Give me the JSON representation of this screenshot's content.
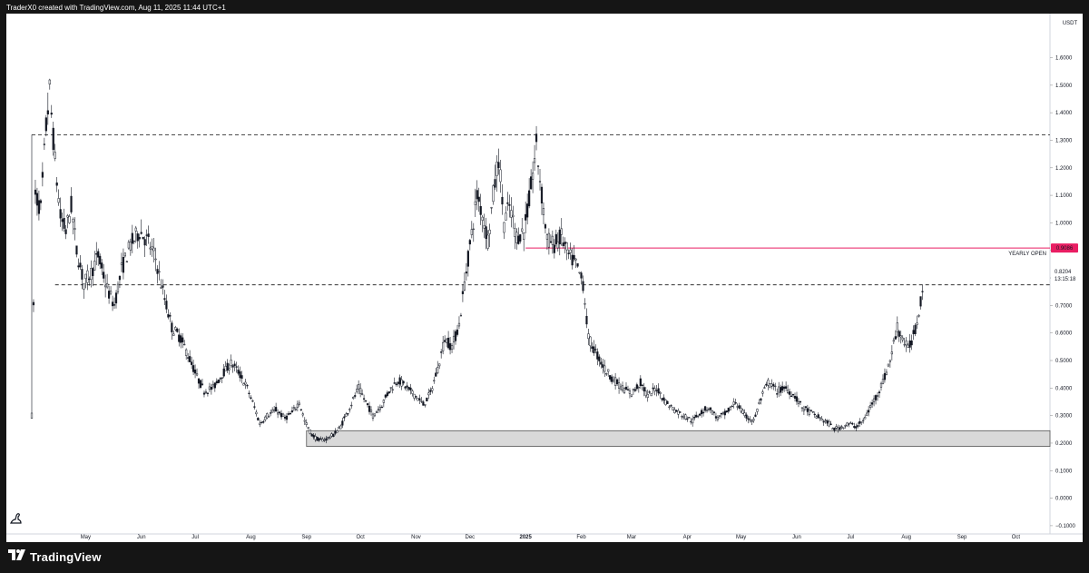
{
  "header": {
    "caption": "TraderX0 created with TradingView.com, Aug 11, 2025 11:44 UTC+1"
  },
  "footer": {
    "brand": "TradingView"
  },
  "icons": {
    "footer_logo": "tradingview-logo-icon",
    "corner": "tradingview-mascot-icon"
  },
  "colors": {
    "background": "#ffffff",
    "frame": "#151515",
    "candle": "#131722",
    "yearly_open": "#e91e63",
    "range_box": "#d9d9d9"
  },
  "chart_data": {
    "type": "candlestick",
    "currency": "USDT",
    "ylim": [
      -0.13,
      1.76
    ],
    "y_ticks": [
      1.6,
      1.5,
      1.4,
      1.3,
      1.2,
      1.1,
      1.0,
      0.9,
      0.8,
      0.7,
      0.6,
      0.5,
      0.4,
      0.3,
      0.2,
      0.1,
      0.0,
      -0.1
    ],
    "y_tick_labels": [
      "1.6000",
      "1.5000",
      "1.4000",
      "1.3000",
      "1.2000",
      "1.1000",
      "1.0000",
      "0.9000",
      "0.8000",
      "0.7000",
      "0.6000",
      "0.5000",
      "0.4000",
      "0.3000",
      "0.2000",
      "0.1000",
      "0.0000",
      "−0.1000"
    ],
    "x_ticks": [
      {
        "date": "2024-05-01",
        "label": "May"
      },
      {
        "date": "2024-06-01",
        "label": "Jun"
      },
      {
        "date": "2024-07-01",
        "label": "Jul"
      },
      {
        "date": "2024-08-01",
        "label": "Aug"
      },
      {
        "date": "2024-09-01",
        "label": "Sep"
      },
      {
        "date": "2024-10-01",
        "label": "Oct"
      },
      {
        "date": "2024-11-01",
        "label": "Nov"
      },
      {
        "date": "2024-12-01",
        "label": "Dec"
      },
      {
        "date": "2025-01-01",
        "label": "2025"
      },
      {
        "date": "2025-02-01",
        "label": "Feb"
      },
      {
        "date": "2025-03-01",
        "label": "Mar"
      },
      {
        "date": "2025-04-01",
        "label": "Apr"
      },
      {
        "date": "2025-05-01",
        "label": "May"
      },
      {
        "date": "2025-06-01",
        "label": "Jun"
      },
      {
        "date": "2025-07-01",
        "label": "Jul"
      },
      {
        "date": "2025-08-01",
        "label": "Aug"
      },
      {
        "date": "2025-09-01",
        "label": "Sep"
      },
      {
        "date": "2025-10-01",
        "label": "Oct"
      }
    ],
    "x_range": [
      "2024-04-01",
      "2025-10-20"
    ],
    "series_path": [
      [
        "2024-04-01",
        0.3
      ],
      [
        "2024-04-03",
        1.1
      ],
      [
        "2024-04-06",
        1.05
      ],
      [
        "2024-04-09",
        1.35
      ],
      [
        "2024-04-11",
        1.48
      ],
      [
        "2024-04-14",
        1.22
      ],
      [
        "2024-04-17",
        1.02
      ],
      [
        "2024-04-20",
        0.97
      ],
      [
        "2024-04-23",
        1.06
      ],
      [
        "2024-04-26",
        0.9
      ],
      [
        "2024-04-30",
        0.78
      ],
      [
        "2024-05-04",
        0.82
      ],
      [
        "2024-05-08",
        0.88
      ],
      [
        "2024-05-13",
        0.76
      ],
      [
        "2024-05-17",
        0.7
      ],
      [
        "2024-05-21",
        0.83
      ],
      [
        "2024-05-26",
        0.92
      ],
      [
        "2024-05-31",
        0.97
      ],
      [
        "2024-06-05",
        0.93
      ],
      [
        "2024-06-09",
        0.87
      ],
      [
        "2024-06-13",
        0.75
      ],
      [
        "2024-06-18",
        0.62
      ],
      [
        "2024-06-23",
        0.58
      ],
      [
        "2024-06-27",
        0.52
      ],
      [
        "2024-07-02",
        0.44
      ],
      [
        "2024-07-06",
        0.39
      ],
      [
        "2024-07-11",
        0.4
      ],
      [
        "2024-07-16",
        0.45
      ],
      [
        "2024-07-21",
        0.49
      ],
      [
        "2024-07-25",
        0.46
      ],
      [
        "2024-07-30",
        0.4
      ],
      [
        "2024-08-03",
        0.33
      ],
      [
        "2024-08-06",
        0.27
      ],
      [
        "2024-08-10",
        0.3
      ],
      [
        "2024-08-15",
        0.32
      ],
      [
        "2024-08-20",
        0.29
      ],
      [
        "2024-08-24",
        0.31
      ],
      [
        "2024-08-28",
        0.35
      ],
      [
        "2024-08-31",
        0.28
      ],
      [
        "2024-09-04",
        0.23
      ],
      [
        "2024-09-08",
        0.21
      ],
      [
        "2024-09-12",
        0.215
      ],
      [
        "2024-09-16",
        0.23
      ],
      [
        "2024-09-20",
        0.26
      ],
      [
        "2024-09-25",
        0.33
      ],
      [
        "2024-09-30",
        0.4
      ],
      [
        "2024-10-04",
        0.35
      ],
      [
        "2024-10-08",
        0.3
      ],
      [
        "2024-10-13",
        0.34
      ],
      [
        "2024-10-17",
        0.39
      ],
      [
        "2024-10-22",
        0.43
      ],
      [
        "2024-10-27",
        0.4
      ],
      [
        "2024-11-01",
        0.37
      ],
      [
        "2024-11-05",
        0.34
      ],
      [
        "2024-11-09",
        0.38
      ],
      [
        "2024-11-13",
        0.47
      ],
      [
        "2024-11-17",
        0.58
      ],
      [
        "2024-11-21",
        0.55
      ],
      [
        "2024-11-25",
        0.63
      ],
      [
        "2024-11-28",
        0.78
      ],
      [
        "2024-12-02",
        0.96
      ],
      [
        "2024-12-05",
        1.1
      ],
      [
        "2024-12-08",
        1.03
      ],
      [
        "2024-12-11",
        0.94
      ],
      [
        "2024-12-14",
        1.1
      ],
      [
        "2024-12-17",
        1.24
      ],
      [
        "2024-12-20",
        1.0
      ],
      [
        "2024-12-23",
        1.06
      ],
      [
        "2024-12-27",
        0.95
      ],
      [
        "2024-12-31",
        0.97
      ],
      [
        "2025-01-03",
        1.08
      ],
      [
        "2025-01-07",
        1.28
      ],
      [
        "2025-01-10",
        1.1
      ],
      [
        "2025-01-13",
        0.94
      ],
      [
        "2025-01-17",
        0.92
      ],
      [
        "2025-01-21",
        0.95
      ],
      [
        "2025-01-25",
        0.88
      ],
      [
        "2025-01-29",
        0.85
      ],
      [
        "2025-02-02",
        0.78
      ],
      [
        "2025-02-05",
        0.58
      ],
      [
        "2025-02-09",
        0.53
      ],
      [
        "2025-02-14",
        0.47
      ],
      [
        "2025-02-19",
        0.43
      ],
      [
        "2025-02-24",
        0.4
      ],
      [
        "2025-03-01",
        0.38
      ],
      [
        "2025-03-06",
        0.42
      ],
      [
        "2025-03-10",
        0.37
      ],
      [
        "2025-03-15",
        0.4
      ],
      [
        "2025-03-20",
        0.35
      ],
      [
        "2025-03-25",
        0.32
      ],
      [
        "2025-03-30",
        0.3
      ],
      [
        "2025-04-04",
        0.28
      ],
      [
        "2025-04-08",
        0.31
      ],
      [
        "2025-04-13",
        0.33
      ],
      [
        "2025-04-18",
        0.29
      ],
      [
        "2025-04-23",
        0.31
      ],
      [
        "2025-04-28",
        0.35
      ],
      [
        "2025-05-03",
        0.3
      ],
      [
        "2025-05-08",
        0.28
      ],
      [
        "2025-05-12",
        0.36
      ],
      [
        "2025-05-16",
        0.42
      ],
      [
        "2025-05-21",
        0.39
      ],
      [
        "2025-05-26",
        0.4
      ],
      [
        "2025-05-31",
        0.37
      ],
      [
        "2025-06-04",
        0.33
      ],
      [
        "2025-06-09",
        0.31
      ],
      [
        "2025-06-14",
        0.29
      ],
      [
        "2025-06-19",
        0.27
      ],
      [
        "2025-06-22",
        0.25
      ],
      [
        "2025-06-26",
        0.26
      ],
      [
        "2025-06-30",
        0.27
      ],
      [
        "2025-07-04",
        0.26
      ],
      [
        "2025-07-08",
        0.28
      ],
      [
        "2025-07-12",
        0.33
      ],
      [
        "2025-07-16",
        0.38
      ],
      [
        "2025-07-20",
        0.44
      ],
      [
        "2025-07-23",
        0.5
      ],
      [
        "2025-07-27",
        0.62
      ],
      [
        "2025-07-30",
        0.58
      ],
      [
        "2025-08-02",
        0.54
      ],
      [
        "2025-08-05",
        0.59
      ],
      [
        "2025-08-07",
        0.64
      ],
      [
        "2025-08-09",
        0.72
      ],
      [
        "2025-08-11",
        0.82
      ]
    ],
    "annotations": [
      {
        "type": "hline",
        "y": 1.32,
        "style": "dashed",
        "from": "2024-04-01",
        "to": "2025-10-20"
      },
      {
        "type": "hline",
        "y": 0.775,
        "style": "dashed",
        "from": "2024-04-14",
        "to": "2025-10-20"
      },
      {
        "type": "hline",
        "y": 0.9086,
        "style": "solid",
        "label": "YEARLY OPEN",
        "from": "2025-01-01",
        "to": "2025-10-20"
      },
      {
        "type": "box",
        "y_from": 0.188,
        "y_to": 0.245,
        "from": "2024-09-01",
        "to": "2025-10-20"
      }
    ],
    "price_badges": [
      {
        "value": "0.9086",
        "kind": "yearly-open"
      },
      {
        "value": "0.8204",
        "kind": "last-price",
        "countdown": "13:15:18"
      }
    ],
    "grid": false
  }
}
